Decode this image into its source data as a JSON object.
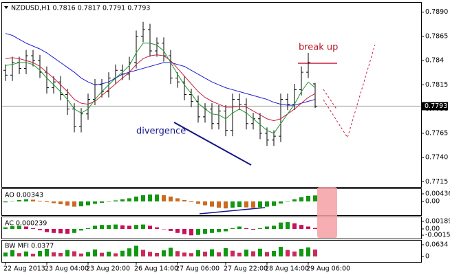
{
  "chart_data": [
    {
      "type": "ohlc",
      "title": "NZDUSD,H1  0.7816 0.7817 0.7791 0.7793",
      "categories": [
        "22 Aug 2013",
        null,
        null,
        null,
        null,
        null,
        "23 Aug 04:00",
        null,
        null,
        null,
        null,
        null,
        "23 Aug 20:00",
        null,
        null,
        null,
        null,
        null,
        null,
        "26 Aug 14:00",
        null,
        null,
        null,
        null,
        null,
        "27 Aug 06:00",
        null,
        null,
        null,
        null,
        null,
        null,
        "27 Aug 22:00",
        null,
        null,
        null,
        null,
        null,
        "28 Aug 14:00",
        null,
        null,
        null,
        null,
        null,
        "29 Aug 06:00",
        null
      ],
      "bars": [
        [
          0.783,
          0.7836,
          0.7819,
          0.7825
        ],
        [
          0.7825,
          0.7844,
          0.7819,
          0.7838
        ],
        [
          0.7838,
          0.7844,
          0.7826,
          0.7832
        ],
        [
          0.7832,
          0.7851,
          0.7826,
          0.7845
        ],
        [
          0.7845,
          0.7851,
          0.7834,
          0.784
        ],
        [
          0.784,
          0.7846,
          0.7822,
          0.7828
        ],
        [
          0.7828,
          0.7834,
          0.7806,
          0.7812
        ],
        [
          0.7812,
          0.7824,
          0.7806,
          0.7818
        ],
        [
          0.7818,
          0.7824,
          0.7799,
          0.7805
        ],
        [
          0.7805,
          0.7811,
          0.7784,
          0.779
        ],
        [
          0.779,
          0.7796,
          0.7766,
          0.7772
        ],
        [
          0.7772,
          0.7791,
          0.7766,
          0.7785
        ],
        [
          0.7785,
          0.7806,
          0.7779,
          0.78
        ],
        [
          0.78,
          0.7821,
          0.7794,
          0.7815
        ],
        [
          0.7815,
          0.7821,
          0.7802,
          0.7808
        ],
        [
          0.7808,
          0.7828,
          0.7802,
          0.7822
        ],
        [
          0.7822,
          0.7836,
          0.7816,
          0.783
        ],
        [
          0.783,
          0.7836,
          0.782,
          0.7826
        ],
        [
          0.7826,
          0.7844,
          0.782,
          0.7838
        ],
        [
          0.7838,
          0.7871,
          0.7832,
          0.7865
        ],
        [
          0.7865,
          0.788,
          0.7859,
          0.7872
        ],
        [
          0.7872,
          0.7878,
          0.7844,
          0.785
        ],
        [
          0.785,
          0.7864,
          0.7844,
          0.7858
        ],
        [
          0.7858,
          0.7864,
          0.7839,
          0.7845
        ],
        [
          0.7845,
          0.7851,
          0.7816,
          0.7822
        ],
        [
          0.7822,
          0.7828,
          0.7812,
          0.7818
        ],
        [
          0.7818,
          0.7824,
          0.7799,
          0.7805
        ],
        [
          0.7805,
          0.7811,
          0.7792,
          0.7798
        ],
        [
          0.7798,
          0.7804,
          0.7776,
          0.7782
        ],
        [
          0.7782,
          0.7796,
          0.7776,
          0.779
        ],
        [
          0.779,
          0.7796,
          0.7769,
          0.7775
        ],
        [
          0.7775,
          0.7794,
          0.7769,
          0.7788
        ],
        [
          0.7788,
          0.7794,
          0.7762,
          0.7768
        ],
        [
          0.7768,
          0.7806,
          0.7762,
          0.78
        ],
        [
          0.78,
          0.7806,
          0.7789,
          0.7795
        ],
        [
          0.7795,
          0.7801,
          0.7769,
          0.7775
        ],
        [
          0.7775,
          0.7786,
          0.7769,
          0.778
        ],
        [
          0.778,
          0.7786,
          0.7759,
          0.7765
        ],
        [
          0.7765,
          0.7771,
          0.7752,
          0.7758
        ],
        [
          0.7758,
          0.7768,
          0.7752,
          0.7762
        ],
        [
          0.7762,
          0.7806,
          0.7756,
          0.78
        ],
        [
          0.78,
          0.7806,
          0.7789,
          0.7795
        ],
        [
          0.7795,
          0.7816,
          0.7789,
          0.781
        ],
        [
          0.781,
          0.7834,
          0.7804,
          0.7828
        ],
        [
          0.7828,
          0.7848,
          0.7822,
          0.7838
        ],
        [
          0.7816,
          0.7817,
          0.7791,
          0.7793
        ]
      ],
      "lines": [
        {
          "color": "#1c1cd0",
          "values": [
            0.7868,
            0.7866,
            0.7862,
            0.7858,
            0.7855,
            0.7852,
            0.7848,
            0.7843,
            0.7838,
            0.7833,
            0.7828,
            0.7822,
            0.7818,
            0.7815,
            0.7816,
            0.7818,
            0.7822,
            0.7826,
            0.7828,
            0.783,
            0.7832,
            0.7834,
            0.7836,
            0.7838,
            0.7838,
            0.7836,
            0.7834,
            0.783,
            0.7826,
            0.7822,
            0.7818,
            0.7815,
            0.7812,
            0.781,
            0.7808,
            0.7806,
            0.7804,
            0.7802,
            0.78,
            0.7797,
            0.7795,
            0.7794,
            0.7794,
            0.7796,
            0.7798,
            0.78
          ]
        },
        {
          "color": "#c81e3c",
          "values": [
            0.7842,
            0.7843,
            0.7842,
            0.784,
            0.7838,
            0.7834,
            0.7828,
            0.7822,
            0.7815,
            0.7808,
            0.78,
            0.7796,
            0.7795,
            0.7798,
            0.7804,
            0.781,
            0.7816,
            0.7822,
            0.7828,
            0.7836,
            0.7842,
            0.7845,
            0.7846,
            0.7845,
            0.784,
            0.7832,
            0.7824,
            0.7816,
            0.7808,
            0.7802,
            0.7798,
            0.7795,
            0.7792,
            0.7792,
            0.7793,
            0.7792,
            0.7788,
            0.7784,
            0.778,
            0.7778,
            0.778,
            0.7785,
            0.779,
            0.7796,
            0.7802,
            0.7806
          ]
        },
        {
          "color": "#1e9628",
          "values": [
            0.7835,
            0.7836,
            0.7838,
            0.7838,
            0.7836,
            0.783,
            0.7822,
            0.7815,
            0.7808,
            0.78,
            0.779,
            0.7786,
            0.779,
            0.78,
            0.7808,
            0.7815,
            0.7822,
            0.7828,
            0.7835,
            0.7848,
            0.7858,
            0.7858,
            0.7856,
            0.785,
            0.7838,
            0.7826,
            0.7815,
            0.7806,
            0.7796,
            0.779,
            0.7785,
            0.7784,
            0.778,
            0.7786,
            0.779,
            0.7786,
            0.778,
            0.7774,
            0.7768,
            0.7765,
            0.7775,
            0.7785,
            0.7795,
            0.7808,
            0.7818,
            0.7812
          ]
        }
      ],
      "last_price": 0.7793,
      "ylim": [
        0.7711,
        0.7899
      ],
      "yticks": [
        0.7715,
        {
          "value": 0.774,
          "label": "0.7740"
        },
        0.7765,
        {
          "value": 0.779,
          "label": "0.7790"
        },
        0.7815,
        0.784,
        0.7865,
        {
          "value": 0.789,
          "label": "0.7890"
        }
      ],
      "annotations": [
        "break up",
        "divergence"
      ]
    },
    {
      "type": "bar",
      "title": "AO 0.00343",
      "up_color": "#109810",
      "down_color": "#cc6a20",
      "values": [
        -0.0005,
        0.0002,
        0.0008,
        0.0012,
        0.001,
        0.0004,
        -0.0004,
        -0.001,
        -0.0016,
        -0.0024,
        -0.003,
        -0.0028,
        -0.0022,
        -0.0014,
        -0.0008,
        -0.0002,
        0.0006,
        0.0012,
        0.0018,
        0.0028,
        0.0036,
        0.004,
        0.004,
        0.0036,
        0.0028,
        0.0018,
        0.0008,
        -0.0004,
        -0.0014,
        -0.0022,
        -0.003,
        -0.0036,
        -0.004,
        -0.0036,
        -0.0032,
        -0.0034,
        -0.0036,
        -0.0034,
        -0.003,
        -0.0026,
        -0.0012,
        0.0,
        0.0012,
        0.0024,
        0.0032,
        0.00343
      ],
      "ylim": [
        -0.0075,
        0.0071
      ],
      "yticks": [
        {
          "value": 0,
          "label": "0.00"
        },
        0.00436
      ]
    },
    {
      "type": "bar",
      "title": "AC 0.000239",
      "up_color": "#109810",
      "down_color": "#c8105a",
      "values": [
        0.0004,
        0.0007,
        0.0008,
        0.0006,
        0.0002,
        -0.0003,
        -0.0008,
        -0.001,
        -0.0011,
        -0.0012,
        -0.001,
        -0.0004,
        0.0002,
        0.0008,
        0.001,
        0.001,
        0.0011,
        0.0009,
        0.0008,
        0.001,
        0.0011,
        0.0008,
        0.0004,
        0.0,
        -0.0005,
        -0.001,
        -0.0013,
        -0.0016,
        -0.0015,
        -0.0012,
        -0.001,
        -0.0008,
        -0.0006,
        0.0002,
        0.0006,
        0.0002,
        -0.0002,
        0.0002,
        0.0006,
        0.0008,
        0.0016,
        0.0017,
        0.0014,
        0.001,
        0.0006,
        0.000239
      ],
      "ylim": [
        -0.00224,
        0.00275
      ],
      "yticks": [
        -0.00156,
        {
          "value": 0,
          "label": "0.00"
        },
        0.001893
      ]
    },
    {
      "type": "bar",
      "title": "BW MFI 0.0377",
      "up_color": "#109810",
      "down_color": "#cc2a5a",
      "values": [
        0.021,
        0.034,
        0.018,
        0.027,
        0.015,
        0.03,
        0.041,
        0.022,
        0.019,
        0.035,
        0.028,
        0.016,
        0.024,
        0.038,
        0.02,
        0.026,
        0.017,
        0.031,
        0.044,
        0.058,
        0.036,
        0.025,
        0.019,
        0.033,
        0.047,
        0.029,
        0.021,
        0.018,
        0.034,
        0.026,
        0.039,
        0.022,
        0.045,
        0.031,
        0.02,
        0.037,
        0.028,
        0.042,
        0.024,
        0.03,
        0.052,
        0.035,
        0.027,
        0.041,
        0.049,
        0.0377
      ],
      "ylim": [
        -0.026,
        0.0858
      ],
      "yticks": [
        0,
        0.0634
      ]
    }
  ]
}
